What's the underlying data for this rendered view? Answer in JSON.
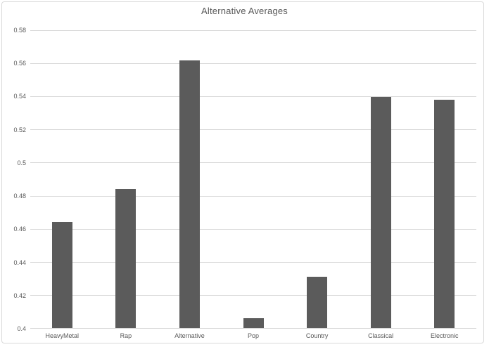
{
  "chart": {
    "title": "Alternative Averages"
  },
  "chart_data": {
    "type": "bar",
    "title": "Alternative Averages",
    "categories": [
      "HeavyMetal",
      "Rap",
      "Alternative",
      "Pop",
      "Country",
      "Classical",
      "Electronic"
    ],
    "values": [
      0.464,
      0.484,
      0.5615,
      0.406,
      0.431,
      0.5395,
      0.5375
    ],
    "xlabel": "",
    "ylabel": "",
    "ylim": [
      0.4,
      0.58
    ],
    "yticks": [
      0.4,
      0.42,
      0.44,
      0.46,
      0.48,
      0.5,
      0.52,
      0.54,
      0.56,
      0.58
    ],
    "ytick_labels": [
      "0.4",
      "0.42",
      "0.44",
      "0.46",
      "0.48",
      "0.5",
      "0.52",
      "0.54",
      "0.56",
      "0.58"
    ],
    "grid": true,
    "legend": false,
    "colors": {
      "bar": "#5B5B5B",
      "gridline": "#D9D9D9",
      "axis_line": "#D9D9D9",
      "text": "#595959",
      "border": "#D9D9D9",
      "background": "#FFFFFF"
    }
  }
}
